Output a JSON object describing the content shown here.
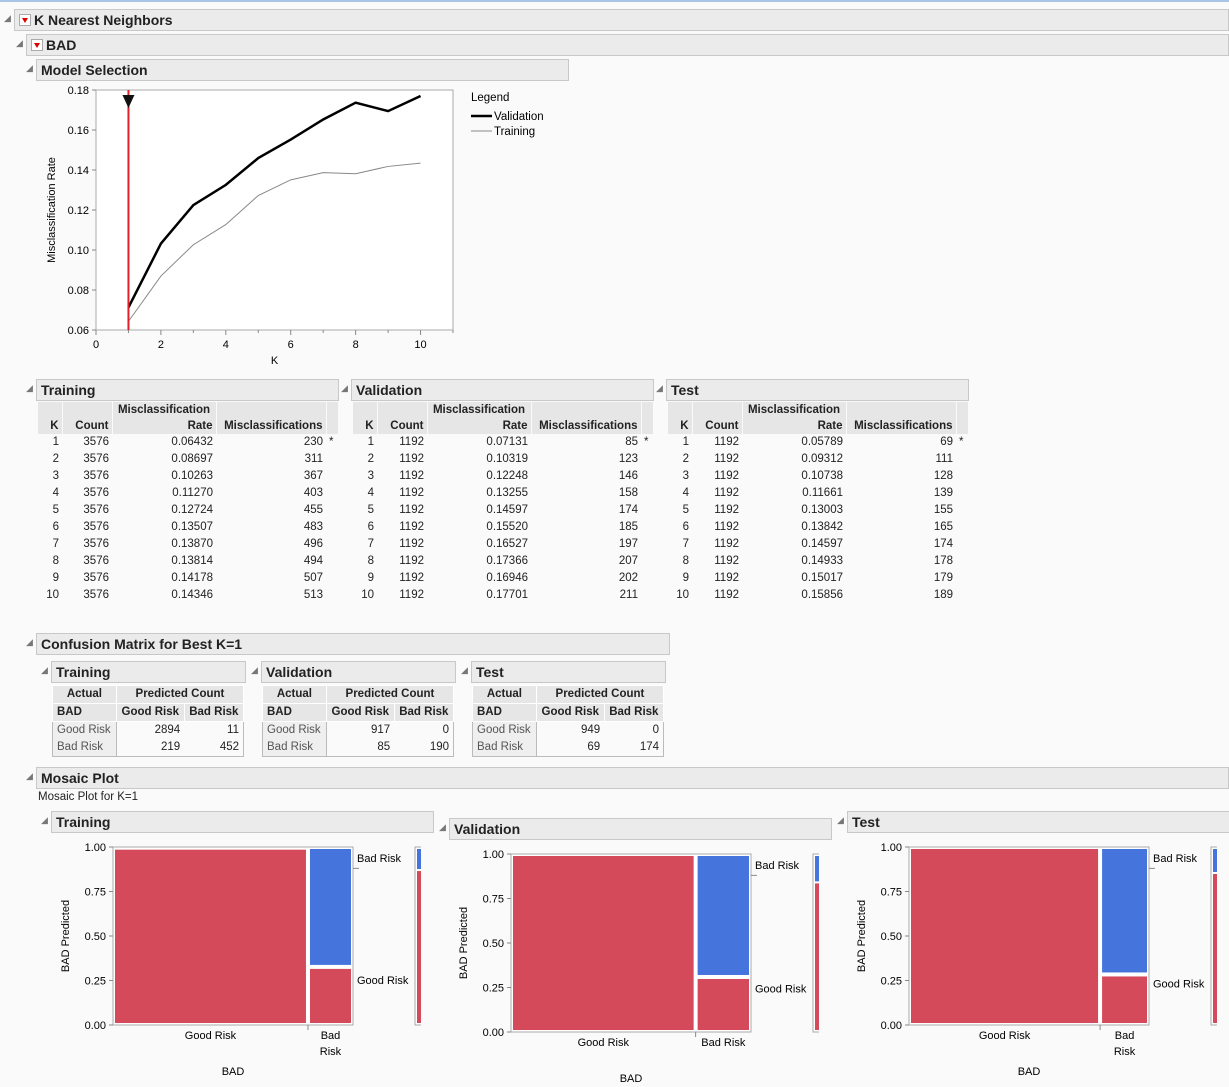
{
  "outline": {
    "knn": "K Nearest Neighbors",
    "target": "BAD",
    "model_selection": "Model Selection",
    "confusion": "Confusion Matrix for Best K=1",
    "mosaic": "Mosaic Plot",
    "mosaic_caption": "Mosaic Plot for K=1"
  },
  "chart_data": {
    "type": "line",
    "xlabel": "K",
    "ylabel": "Misclassification Rate",
    "xlim": [
      0,
      11
    ],
    "ylim": [
      0.06,
      0.18
    ],
    "xticks": [
      0,
      2,
      4,
      6,
      8,
      10
    ],
    "yticks": [
      "0.06",
      "0.08",
      "0.10",
      "0.12",
      "0.14",
      "0.16",
      "0.18"
    ],
    "best_k": 1,
    "legend_title": "Legend",
    "legend_position": "right",
    "x": [
      1,
      2,
      3,
      4,
      5,
      6,
      7,
      8,
      9,
      10
    ],
    "series": [
      {
        "name": "Validation",
        "color": "#000000",
        "values": [
          0.07131,
          0.10319,
          0.12248,
          0.13255,
          0.14597,
          0.1552,
          0.16527,
          0.17366,
          0.16946,
          0.17701
        ]
      },
      {
        "name": "Training",
        "color": "#888888",
        "values": [
          0.06432,
          0.08697,
          0.10263,
          0.1127,
          0.12724,
          0.13507,
          0.1387,
          0.13814,
          0.14178,
          0.14346
        ]
      }
    ]
  },
  "stats_columns": [
    "K",
    "Count",
    "Misclassification",
    "Rate",
    "Misclassifications"
  ],
  "stats": [
    {
      "title": "Training",
      "count": 3576,
      "rates": [
        "0.06432",
        "0.08697",
        "0.10263",
        "0.11270",
        "0.12724",
        "0.13507",
        "0.13870",
        "0.13814",
        "0.14178",
        "0.14346"
      ],
      "mis": [
        230,
        311,
        367,
        403,
        455,
        483,
        496,
        494,
        507,
        513
      ]
    },
    {
      "title": "Validation",
      "count": 1192,
      "rates": [
        "0.07131",
        "0.10319",
        "0.12248",
        "0.13255",
        "0.14597",
        "0.15520",
        "0.16527",
        "0.17366",
        "0.16946",
        "0.17701"
      ],
      "mis": [
        85,
        123,
        146,
        158,
        174,
        185,
        197,
        207,
        202,
        211
      ]
    },
    {
      "title": "Test",
      "count": 1192,
      "rates": [
        "0.05789",
        "0.09312",
        "0.10738",
        "0.11661",
        "0.13003",
        "0.13842",
        "0.14597",
        "0.14933",
        "0.15017",
        "0.15856"
      ],
      "mis": [
        69,
        111,
        128,
        139,
        155,
        165,
        174,
        178,
        179,
        189
      ]
    }
  ],
  "best_marker": "*",
  "confusion": {
    "actual": "Actual",
    "predicted": "Predicted Count",
    "var": "BAD",
    "levels": [
      "Good Risk",
      "Bad Risk"
    ],
    "tables": [
      {
        "title": "Training",
        "counts": [
          [
            2894,
            11
          ],
          [
            219,
            452
          ]
        ]
      },
      {
        "title": "Validation",
        "counts": [
          [
            917,
            0
          ],
          [
            85,
            190
          ]
        ]
      },
      {
        "title": "Test",
        "counts": [
          [
            949,
            0
          ],
          [
            69,
            174
          ]
        ]
      }
    ]
  },
  "mosaic_axis": {
    "ylabel": "BAD Predicted",
    "xlabel": "BAD",
    "yticks": [
      "0.00",
      "0.25",
      "0.50",
      "0.75",
      "1.00"
    ]
  },
  "colors": {
    "good": "#d44a5a",
    "bad": "#4574dc",
    "accent_line": "#e0202a"
  }
}
